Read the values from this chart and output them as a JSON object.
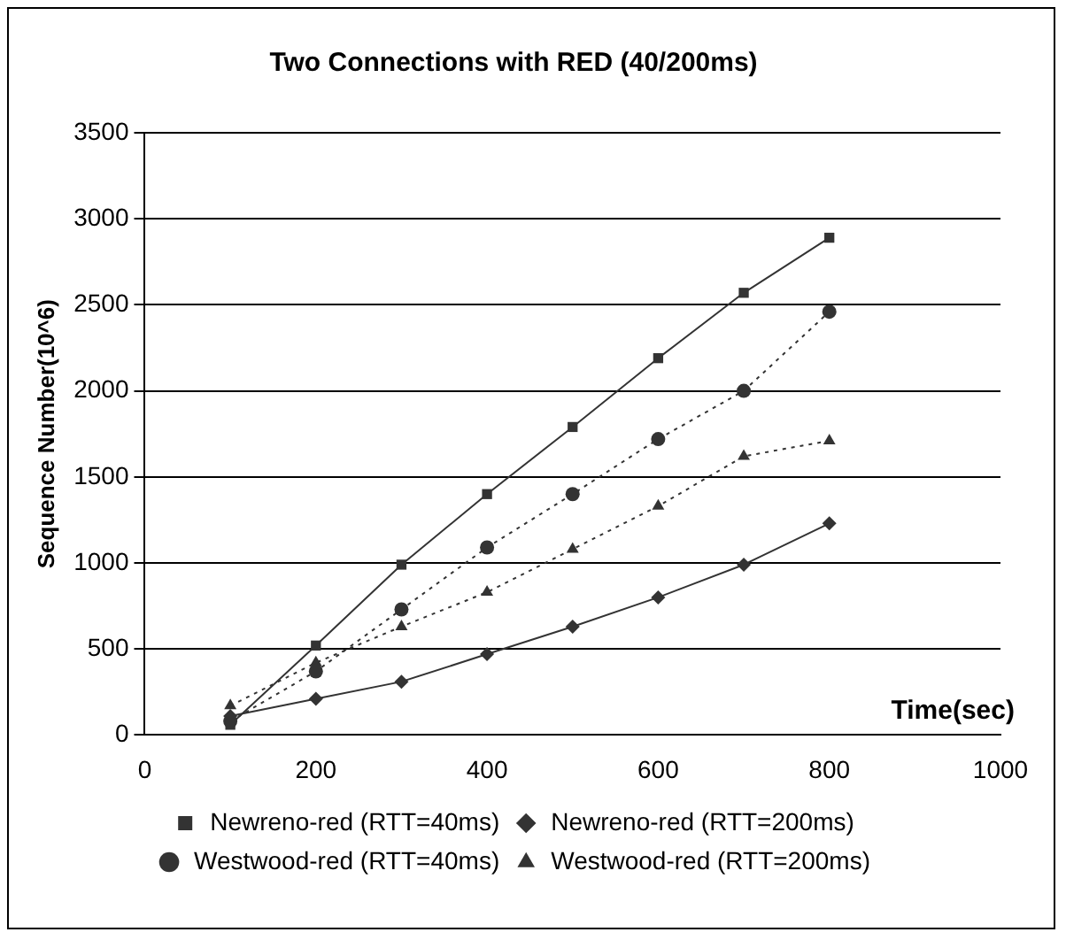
{
  "chart_data": {
    "type": "line",
    "title": "Two Connections with RED (40/200ms)",
    "xlabel": "Time(sec)",
    "ylabel": "Sequence Number(10^6)",
    "x": [
      100,
      200,
      300,
      400,
      500,
      600,
      700,
      800
    ],
    "xlim": [
      0,
      1000
    ],
    "xticks": [
      0,
      200,
      400,
      600,
      800,
      1000
    ],
    "ylim": [
      0,
      3500
    ],
    "yticks": [
      0,
      500,
      1000,
      1500,
      2000,
      2500,
      3000,
      3500
    ],
    "grid": "y",
    "legend": "bottom",
    "series": [
      {
        "name": "Newreno-red (RTT=40ms)",
        "color": "#333333",
        "marker": "square",
        "line_style": "solid",
        "values": [
          60,
          520,
          990,
          1400,
          1790,
          2190,
          2570,
          2890
        ]
      },
      {
        "name": "Newreno-red (RTT=200ms)",
        "color": "#333333",
        "marker": "diamond",
        "line_style": "solid",
        "values": [
          110,
          210,
          310,
          470,
          630,
          800,
          990,
          1230
        ]
      },
      {
        "name": "Westwood-red (RTT=40ms)",
        "color": "#333333",
        "marker": "circle",
        "line_style": "dotted",
        "values": [
          80,
          370,
          730,
          1090,
          1400,
          1720,
          2000,
          2460
        ]
      },
      {
        "name": "Westwood-red (RTT=200ms)",
        "color": "#333333",
        "marker": "triangle",
        "line_style": "dotted",
        "values": [
          170,
          420,
          630,
          830,
          1080,
          1330,
          1620,
          1710
        ]
      }
    ]
  }
}
